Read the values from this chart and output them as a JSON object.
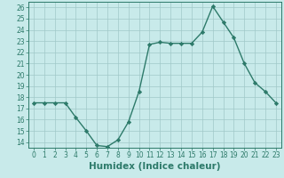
{
  "x": [
    0,
    1,
    2,
    3,
    4,
    5,
    6,
    7,
    8,
    9,
    10,
    11,
    12,
    13,
    14,
    15,
    16,
    17,
    18,
    19,
    20,
    21,
    22,
    23
  ],
  "y": [
    17.5,
    17.5,
    17.5,
    17.5,
    16.2,
    15.0,
    13.7,
    13.6,
    14.2,
    15.8,
    18.5,
    22.7,
    22.9,
    22.8,
    22.8,
    22.8,
    23.8,
    26.1,
    24.7,
    23.3,
    21.0,
    19.3,
    18.5,
    17.5
  ],
  "line_color": "#2d7a6a",
  "marker": "D",
  "marker_size": 2.2,
  "bg_color": "#c8eaea",
  "grid_color": "#a0c8c8",
  "xlabel": "Humidex (Indice chaleur)",
  "xlim": [
    -0.5,
    23.5
  ],
  "ylim": [
    13.5,
    26.5
  ],
  "yticks": [
    14,
    15,
    16,
    17,
    18,
    19,
    20,
    21,
    22,
    23,
    24,
    25,
    26
  ],
  "xticks": [
    0,
    1,
    2,
    3,
    4,
    5,
    6,
    7,
    8,
    9,
    10,
    11,
    12,
    13,
    14,
    15,
    16,
    17,
    18,
    19,
    20,
    21,
    22,
    23
  ],
  "xlabel_fontsize": 7.5,
  "tick_fontsize": 5.5,
  "line_width": 1.0
}
